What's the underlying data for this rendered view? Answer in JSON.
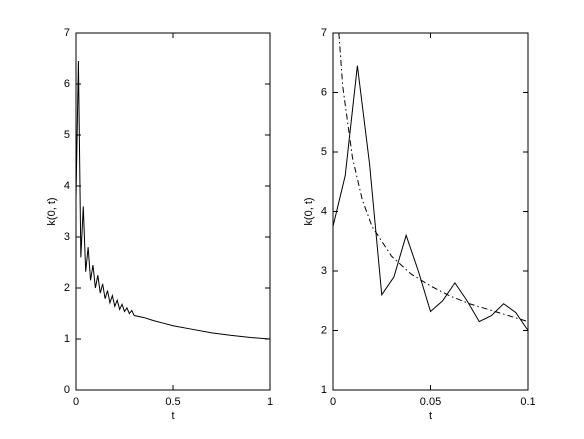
{
  "chart_data": [
    {
      "type": "line",
      "xlabel": "t",
      "ylabel": "k(0, t)",
      "xlim": [
        0,
        1
      ],
      "xticks": [
        0,
        0.5,
        1
      ],
      "ylim": [
        0,
        7
      ],
      "yticks": [
        0,
        1,
        2,
        3,
        4,
        5,
        6,
        7
      ],
      "series": [
        {
          "color": "#000000",
          "linestyle": "solid",
          "x": [
            0,
            0.0125,
            0.025,
            0.0375,
            0.05,
            0.0625,
            0.075,
            0.0875,
            0.1,
            0.1125,
            0.125,
            0.1375,
            0.15,
            0.1625,
            0.175,
            0.1875,
            0.2,
            0.2125,
            0.225,
            0.2375,
            0.25,
            0.2625,
            0.275,
            0.2875,
            0.3,
            0.35,
            0.4,
            0.45,
            0.5,
            0.6,
            0.7,
            0.8,
            0.9,
            1
          ],
          "values": [
            3.75,
            6.45,
            2.6,
            3.6,
            2.32,
            2.8,
            2.15,
            2.45,
            2.0,
            2.25,
            1.9,
            2.08,
            1.79,
            1.95,
            1.71,
            1.85,
            1.64,
            1.76,
            1.58,
            1.68,
            1.54,
            1.61,
            1.5,
            1.56,
            1.46,
            1.42,
            1.36,
            1.31,
            1.26,
            1.19,
            1.12,
            1.07,
            1.03,
            1.0
          ]
        }
      ]
    },
    {
      "type": "line",
      "xlabel": "t",
      "ylabel": "k(0, t)",
      "xlim": [
        0,
        0.1
      ],
      "xticks": [
        0,
        0.05,
        0.1
      ],
      "ylim": [
        1,
        7
      ],
      "yticks": [
        1,
        2,
        3,
        4,
        5,
        6,
        7
      ],
      "series": [
        {
          "color": "#000000",
          "linestyle": "solid",
          "x": [
            0,
            0.00625,
            0.0125,
            0.01875,
            0.025,
            0.03125,
            0.0375,
            0.04375,
            0.05,
            0.05625,
            0.0625,
            0.06875,
            0.075,
            0.08125,
            0.0875,
            0.09375,
            0.1
          ],
          "values": [
            3.75,
            4.6,
            6.45,
            4.8,
            2.6,
            2.9,
            3.6,
            3.0,
            2.32,
            2.5,
            2.8,
            2.5,
            2.15,
            2.25,
            2.45,
            2.3,
            2.0
          ]
        },
        {
          "color": "#000000",
          "linestyle": "dashdot",
          "x": [
            0.003,
            0.005,
            0.01,
            0.015,
            0.02,
            0.03,
            0.04,
            0.05,
            0.06,
            0.07,
            0.08,
            0.09,
            0.1
          ],
          "values": [
            7.0,
            6.1,
            4.9,
            4.2,
            3.75,
            3.25,
            2.95,
            2.75,
            2.58,
            2.45,
            2.35,
            2.25,
            2.15
          ]
        }
      ]
    }
  ]
}
